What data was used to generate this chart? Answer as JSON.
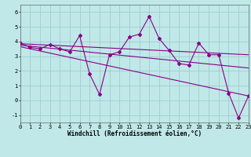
{
  "xlabel": "Windchill (Refroidissement éolien,°C)",
  "background_color": "#c0e8e8",
  "grid_color": "#a0cccc",
  "line_color": "#880088",
  "x_data": [
    0,
    1,
    2,
    3,
    4,
    5,
    6,
    7,
    8,
    9,
    10,
    11,
    12,
    13,
    14,
    15,
    16,
    17,
    18,
    19,
    20,
    21,
    22,
    23
  ],
  "line1": [
    3.9,
    3.6,
    3.5,
    3.8,
    3.5,
    3.3,
    4.4,
    1.8,
    0.4,
    3.1,
    3.3,
    4.3,
    4.5,
    5.7,
    4.2,
    3.4,
    2.5,
    2.4,
    3.9,
    3.1,
    3.1,
    0.5,
    -1.2,
    0.3
  ],
  "regression_lines": [
    {
      "x0": 0,
      "y0": 3.85,
      "x1": 23,
      "y1": 3.1
    },
    {
      "x0": 0,
      "y0": 3.75,
      "x1": 23,
      "y1": 2.2
    },
    {
      "x0": 0,
      "y0": 3.65,
      "x1": 23,
      "y1": 0.3
    }
  ],
  "xlim": [
    0,
    23
  ],
  "ylim": [
    -1.5,
    6.5
  ],
  "yticks": [
    -1,
    0,
    1,
    2,
    3,
    4,
    5,
    6
  ],
  "xticks": [
    0,
    1,
    2,
    3,
    4,
    5,
    6,
    7,
    8,
    9,
    10,
    11,
    12,
    13,
    14,
    15,
    16,
    17,
    18,
    19,
    20,
    21,
    22,
    23
  ],
  "tick_fontsize": 5.0,
  "xlabel_fontsize": 5.5,
  "marker": "D",
  "markersize": 2.0,
  "linewidth": 0.8
}
